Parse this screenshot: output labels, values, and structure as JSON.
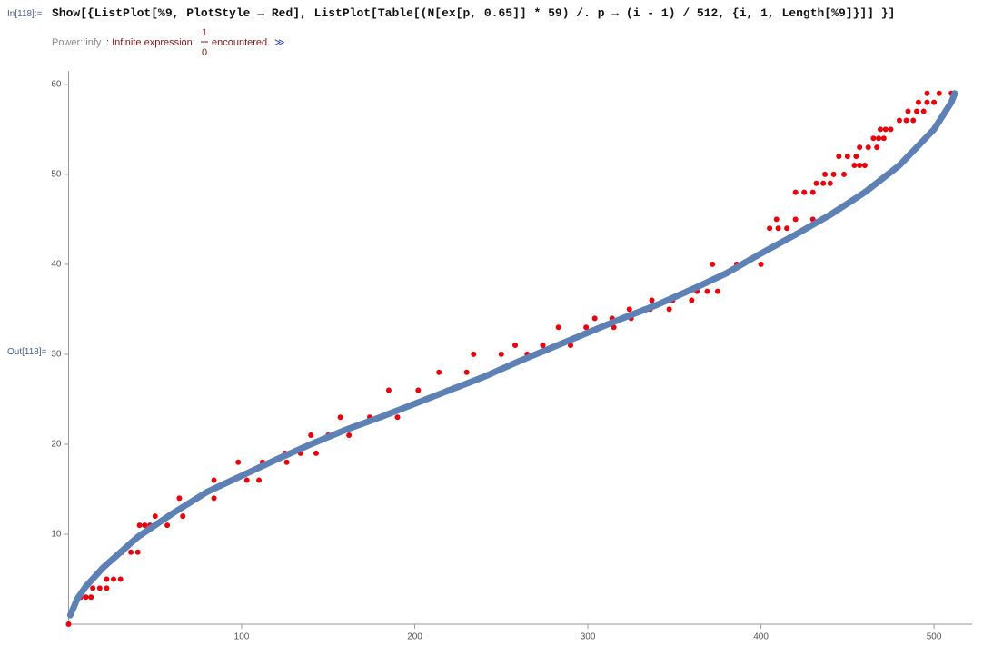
{
  "input": {
    "label": "In[118]:=",
    "code": "Show[{ListPlot[%9, PlotStyle → Red], ListPlot[Table[(N[ex[p, 0.65]] * 59) /. p → (i - 1) / 512, {i, 1, Length[%9]}]] }]"
  },
  "message": {
    "tag": "Power::infy",
    "text": ": Infinite expression",
    "numerator": "1",
    "denominator": "0",
    "text2": "encountered.",
    "link": "≫"
  },
  "output": {
    "label": "Out[118]="
  },
  "chart_data": {
    "type": "scatter",
    "xlim": [
      0,
      522
    ],
    "ylim": [
      0,
      61.5
    ],
    "xticks": [
      100,
      200,
      300,
      400,
      500
    ],
    "yticks": [
      10,
      20,
      30,
      40,
      50,
      60
    ],
    "series": [
      {
        "color": "#e8000b",
        "style": "points",
        "x": [
          0,
          7,
          10,
          13,
          14,
          18,
          22,
          22,
          26,
          30,
          31,
          36,
          40,
          41,
          44,
          47,
          50,
          58,
          66,
          57,
          64,
          74,
          84,
          84,
          94,
          103,
          98,
          112,
          126,
          110,
          125,
          134,
          143,
          140,
          150,
          162,
          157,
          174,
          190,
          185,
          202,
          219,
          214,
          230,
          245,
          234,
          250,
          265,
          258,
          274,
          290,
          283,
          299,
          315,
          304,
          314,
          325,
          324,
          336,
          347,
          337,
          349,
          360,
          363,
          369,
          375,
          372,
          386,
          400,
          405,
          410,
          415,
          409,
          420,
          430,
          420,
          425,
          430,
          432,
          436,
          440,
          437,
          442,
          448,
          445,
          450,
          455,
          454,
          457,
          460,
          457,
          462,
          467,
          465,
          468,
          471,
          469,
          472,
          475,
          480,
          484,
          488,
          485,
          490,
          494,
          491,
          496,
          500,
          496,
          503,
          510
        ],
        "values": [
          0,
          3,
          3,
          3,
          4,
          4,
          4,
          5,
          5,
          5,
          8,
          8,
          8,
          11,
          11,
          11,
          12,
          12,
          12,
          11,
          14,
          14,
          14,
          16,
          16,
          16,
          18,
          18,
          18,
          16,
          19,
          19,
          19,
          21,
          21,
          21,
          23,
          23,
          23,
          26,
          26,
          26,
          28,
          28,
          28,
          30,
          30,
          30,
          31,
          31,
          31,
          33,
          33,
          33,
          34,
          34,
          34,
          35,
          35,
          35,
          36,
          36,
          36,
          37,
          37,
          37,
          40,
          40,
          40,
          44,
          44,
          44,
          45,
          45,
          45,
          48,
          48,
          48,
          49,
          49,
          49,
          50,
          50,
          50,
          52,
          52,
          52,
          51,
          51,
          51,
          53,
          53,
          53,
          54,
          54,
          54,
          55,
          55,
          55,
          56,
          56,
          56,
          57,
          57,
          57,
          58,
          58,
          58,
          59,
          59,
          59
        ]
      },
      {
        "color": "#5e81b5",
        "style": "dense",
        "x": [
          1,
          5,
          10,
          20,
          30,
          40,
          50,
          60,
          70,
          80,
          100,
          120,
          140,
          160,
          180,
          200,
          220,
          240,
          260,
          280,
          300,
          320,
          340,
          360,
          380,
          400,
          420,
          440,
          460,
          480,
          500,
          505,
          510,
          512
        ],
        "values": [
          1,
          2.8,
          4.2,
          6.3,
          8,
          9.7,
          11,
          12.3,
          13.5,
          14.7,
          16.5,
          18.3,
          20,
          21.6,
          23,
          24.5,
          26,
          27.5,
          29.2,
          30.8,
          32.4,
          34,
          35.5,
          37.2,
          39,
          41.2,
          43.3,
          45.5,
          48,
          51,
          55,
          56.5,
          58,
          59
        ]
      }
    ]
  }
}
